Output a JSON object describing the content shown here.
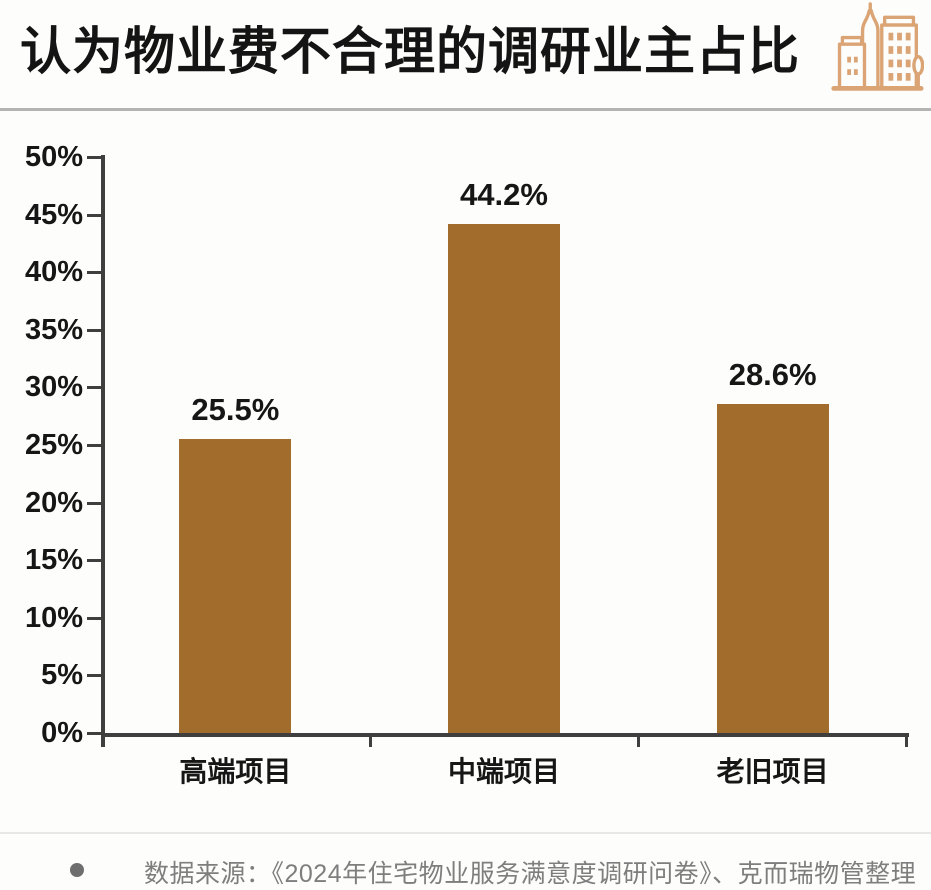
{
  "header": {
    "title": "认为物业费不合理的调研业主占比",
    "icon": "buildings-icon"
  },
  "chart_data": {
    "type": "bar",
    "title": "认为物业费不合理的调研业主占比",
    "categories": [
      "高端项目",
      "中端项目",
      "老旧项目"
    ],
    "values": [
      25.5,
      44.2,
      28.6
    ],
    "value_labels": [
      "25.5%",
      "44.2%",
      "28.6%"
    ],
    "y_ticks": [
      "50%",
      "45%",
      "40%",
      "35%",
      "30%",
      "25%",
      "20%",
      "15%",
      "10%",
      "5%",
      "0%"
    ],
    "ylim": [
      0,
      50
    ],
    "xlabel": "",
    "ylabel": "",
    "grid": false,
    "legend": "none",
    "bar_color": "#a26d2c"
  },
  "footer": {
    "source_text": "数据来源：《2024年住宅物业服务满意度调研问卷》、克而瑞物管整理"
  },
  "colors": {
    "bar": "#a26d2c",
    "axis": "#3f3f3f",
    "title_text": "#141414",
    "label_text": "#161616",
    "source_text": "#7e7e7e",
    "bullet": "#6e6e6e",
    "icon_stroke": "#dba475",
    "divider_top": "#b3b3b3",
    "divider_bottom": "#e8e8e6",
    "bg": "#fdfdfc"
  }
}
